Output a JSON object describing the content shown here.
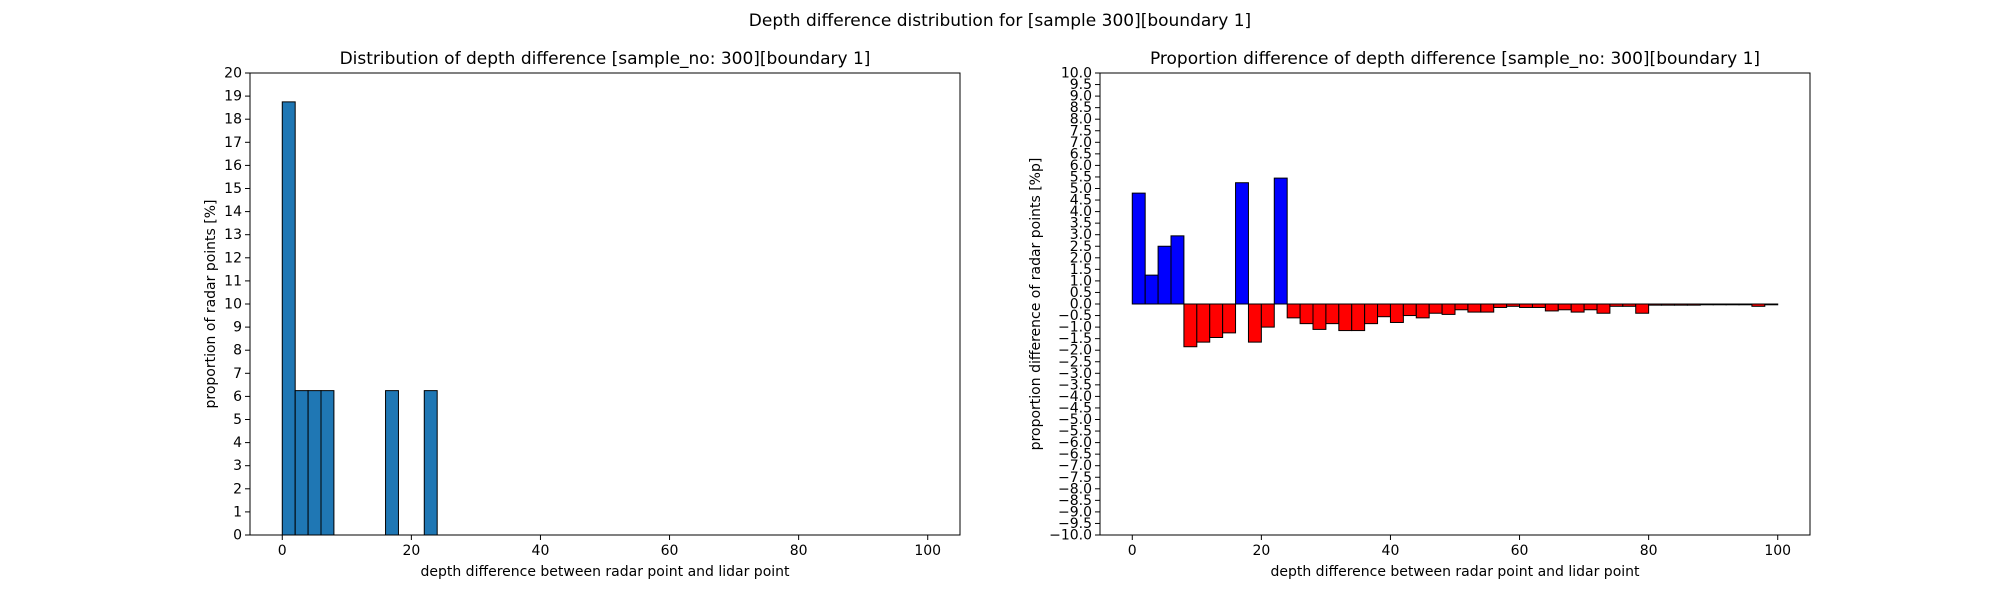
{
  "figure": {
    "suptitle": "Depth difference distribution for [sample 300][boundary 1]"
  },
  "colors": {
    "hist_fill": "#1f77b4",
    "positive_fill": "#0000ff",
    "negative_fill": "#ff0000",
    "edge": "#000000"
  },
  "chart_data": [
    {
      "type": "bar",
      "title": "Distribution of depth difference [sample_no: 300][boundary 1]",
      "xlabel": "depth difference between radar point and lidar point",
      "ylabel": "proportion of radar points [%]",
      "xlim": [
        -5,
        105
      ],
      "ylim": [
        0,
        20
      ],
      "xticks": [
        0,
        20,
        40,
        60,
        80,
        100
      ],
      "yticks": [
        0,
        1,
        2,
        3,
        4,
        5,
        6,
        7,
        8,
        9,
        10,
        11,
        12,
        13,
        14,
        15,
        16,
        17,
        18,
        19,
        20
      ],
      "bin_width": 2,
      "bins_start": [
        0,
        2,
        4,
        6,
        16,
        22
      ],
      "values": [
        18.75,
        6.25,
        6.25,
        6.25,
        6.25,
        6.25
      ],
      "grid": false
    },
    {
      "type": "bar",
      "title": "Proportion difference of depth difference [sample_no: 300][boundary 1]",
      "xlabel": "depth difference between radar point and lidar point",
      "ylabel": "proportion difference of radar points [%p]",
      "xlim": [
        -5,
        105
      ],
      "ylim": [
        -10,
        10
      ],
      "xticks": [
        0,
        20,
        40,
        60,
        80,
        100
      ],
      "yticks": [
        -10.0,
        -9.5,
        -9.0,
        -8.5,
        -8.0,
        -7.5,
        -7.0,
        -6.5,
        -6.0,
        -5.5,
        -5.0,
        -4.5,
        -4.0,
        -3.5,
        -3.0,
        -2.5,
        -2.0,
        -1.5,
        -1.0,
        -0.5,
        0.0,
        0.5,
        1.0,
        1.5,
        2.0,
        2.5,
        3.0,
        3.5,
        4.0,
        4.5,
        5.0,
        5.5,
        6.0,
        6.5,
        7.0,
        7.5,
        8.0,
        8.5,
        9.0,
        9.5,
        10.0
      ],
      "ytick_labels": [
        "−10.0",
        "−9.5",
        "−9.0",
        "−8.5",
        "−8.0",
        "−7.5",
        "−7.0",
        "−6.5",
        "−6.0",
        "−5.5",
        "−5.0",
        "−4.5",
        "−4.0",
        "−3.5",
        "−3.0",
        "−2.5",
        "−2.0",
        "−1.5",
        "−1.0",
        "−0.5",
        "0.0",
        "0.5",
        "1.0",
        "1.5",
        "2.0",
        "2.5",
        "3.0",
        "3.5",
        "4.0",
        "4.5",
        "5.0",
        "5.5",
        "6.0",
        "6.5",
        "7.0",
        "7.5",
        "8.0",
        "8.5",
        "9.0",
        "9.5",
        "10.0"
      ],
      "bin_width": 2,
      "x_start": 0,
      "values": [
        4.8,
        1.25,
        2.5,
        2.95,
        -1.85,
        -1.65,
        -1.45,
        -1.25,
        5.25,
        -1.65,
        -1.0,
        5.45,
        -0.6,
        -0.85,
        -1.1,
        -0.85,
        -1.15,
        -1.15,
        -0.85,
        -0.55,
        -0.8,
        -0.5,
        -0.6,
        -0.4,
        -0.45,
        -0.25,
        -0.35,
        -0.35,
        -0.15,
        -0.1,
        -0.15,
        -0.15,
        -0.3,
        -0.25,
        -0.35,
        -0.25,
        -0.4,
        -0.1,
        -0.1,
        -0.4,
        -0.05,
        -0.05,
        -0.05,
        -0.05,
        0.0,
        0.0,
        0.0,
        0.0,
        -0.1,
        0.0
      ],
      "grid": false
    }
  ]
}
